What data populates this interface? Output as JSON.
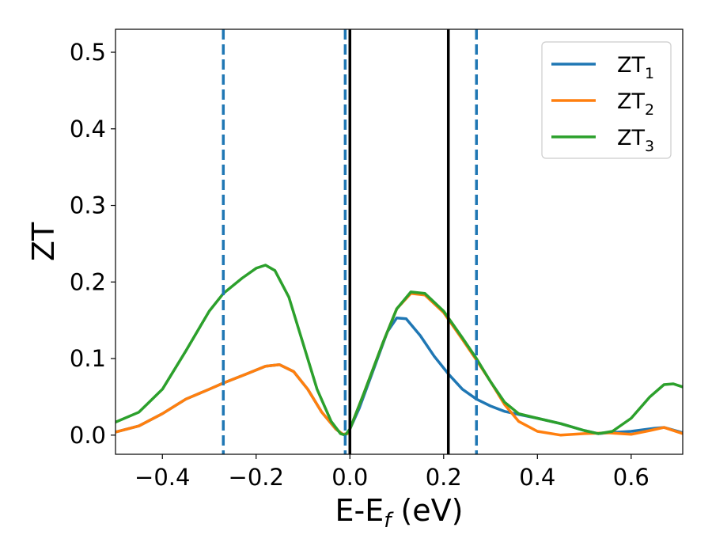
{
  "chart_data": {
    "type": "line",
    "title": "",
    "xlabel": "E-E",
    "xlabel_sub": "f",
    "xlabel_unit": " (eV)",
    "ylabel": "ZT",
    "xlim": [
      -0.5,
      0.71
    ],
    "ylim": [
      -0.025,
      0.53
    ],
    "xticks": [
      -0.4,
      -0.2,
      0.0,
      0.2,
      0.4,
      0.6
    ],
    "xtick_labels": [
      "−0.4",
      "−0.2",
      "0.0",
      "0.2",
      "0.4",
      "0.6"
    ],
    "yticks": [
      0.0,
      0.1,
      0.2,
      0.3,
      0.4,
      0.5
    ],
    "ytick_labels": [
      "0.0",
      "0.1",
      "0.2",
      "0.3",
      "0.4",
      "0.5"
    ],
    "grid": false,
    "legend_position": "top-right",
    "vlines_dashed": {
      "x": [
        -0.27,
        -0.01,
        0.27
      ],
      "color": "#1f77b4"
    },
    "vlines_solid": {
      "x": [
        0.0,
        0.21
      ],
      "color": "#000000"
    },
    "series": [
      {
        "name": "ZT",
        "sub": "1",
        "color": "#1f77b4",
        "points": [
          [
            -0.5,
            0.004
          ],
          [
            -0.45,
            0.012
          ],
          [
            -0.4,
            0.028
          ],
          [
            -0.35,
            0.047
          ],
          [
            -0.3,
            0.06
          ],
          [
            -0.27,
            0.068
          ],
          [
            -0.22,
            0.08
          ],
          [
            -0.18,
            0.09
          ],
          [
            -0.15,
            0.092
          ],
          [
            -0.12,
            0.083
          ],
          [
            -0.09,
            0.06
          ],
          [
            -0.06,
            0.03
          ],
          [
            -0.03,
            0.008
          ],
          [
            -0.015,
            0.001
          ],
          [
            -0.005,
            0.002
          ],
          [
            0.0,
            0.008
          ],
          [
            0.02,
            0.035
          ],
          [
            0.05,
            0.085
          ],
          [
            0.08,
            0.135
          ],
          [
            0.1,
            0.153
          ],
          [
            0.12,
            0.152
          ],
          [
            0.15,
            0.13
          ],
          [
            0.18,
            0.103
          ],
          [
            0.21,
            0.08
          ],
          [
            0.24,
            0.06
          ],
          [
            0.27,
            0.047
          ],
          [
            0.3,
            0.038
          ],
          [
            0.33,
            0.031
          ],
          [
            0.36,
            0.027
          ],
          [
            0.4,
            0.022
          ],
          [
            0.45,
            0.015
          ],
          [
            0.5,
            0.006
          ],
          [
            0.53,
            0.002
          ],
          [
            0.55,
            0.003
          ],
          [
            0.6,
            0.005
          ],
          [
            0.65,
            0.009
          ],
          [
            0.67,
            0.01
          ],
          [
            0.7,
            0.005
          ],
          [
            0.71,
            0.003
          ]
        ]
      },
      {
        "name": "ZT",
        "sub": "2",
        "color": "#ff7f0e",
        "points": [
          [
            -0.5,
            0.004
          ],
          [
            -0.45,
            0.012
          ],
          [
            -0.4,
            0.028
          ],
          [
            -0.35,
            0.047
          ],
          [
            -0.3,
            0.06
          ],
          [
            -0.27,
            0.068
          ],
          [
            -0.22,
            0.08
          ],
          [
            -0.18,
            0.09
          ],
          [
            -0.15,
            0.092
          ],
          [
            -0.12,
            0.083
          ],
          [
            -0.09,
            0.06
          ],
          [
            -0.06,
            0.03
          ],
          [
            -0.03,
            0.008
          ],
          [
            -0.015,
            0.001
          ],
          [
            -0.005,
            0.002
          ],
          [
            0.0,
            0.008
          ],
          [
            0.03,
            0.055
          ],
          [
            0.07,
            0.12
          ],
          [
            0.1,
            0.165
          ],
          [
            0.13,
            0.185
          ],
          [
            0.16,
            0.183
          ],
          [
            0.2,
            0.16
          ],
          [
            0.24,
            0.125
          ],
          [
            0.27,
            0.098
          ],
          [
            0.3,
            0.07
          ],
          [
            0.33,
            0.04
          ],
          [
            0.36,
            0.018
          ],
          [
            0.4,
            0.005
          ],
          [
            0.45,
            0.0
          ],
          [
            0.5,
            0.002
          ],
          [
            0.55,
            0.003
          ],
          [
            0.6,
            0.001
          ],
          [
            0.64,
            0.006
          ],
          [
            0.67,
            0.01
          ],
          [
            0.7,
            0.004
          ],
          [
            0.71,
            0.002
          ]
        ]
      },
      {
        "name": "ZT",
        "sub": "3",
        "color": "#2ca02c",
        "points": [
          [
            -0.5,
            0.017
          ],
          [
            -0.45,
            0.03
          ],
          [
            -0.4,
            0.06
          ],
          [
            -0.35,
            0.11
          ],
          [
            -0.3,
            0.162
          ],
          [
            -0.27,
            0.185
          ],
          [
            -0.23,
            0.205
          ],
          [
            -0.2,
            0.218
          ],
          [
            -0.18,
            0.222
          ],
          [
            -0.16,
            0.215
          ],
          [
            -0.13,
            0.18
          ],
          [
            -0.1,
            0.12
          ],
          [
            -0.07,
            0.06
          ],
          [
            -0.04,
            0.018
          ],
          [
            -0.02,
            0.002
          ],
          [
            -0.01,
            0.0
          ],
          [
            0.0,
            0.008
          ],
          [
            0.03,
            0.055
          ],
          [
            0.07,
            0.12
          ],
          [
            0.1,
            0.165
          ],
          [
            0.13,
            0.187
          ],
          [
            0.16,
            0.185
          ],
          [
            0.2,
            0.162
          ],
          [
            0.24,
            0.127
          ],
          [
            0.27,
            0.1
          ],
          [
            0.3,
            0.07
          ],
          [
            0.33,
            0.043
          ],
          [
            0.36,
            0.028
          ],
          [
            0.4,
            0.022
          ],
          [
            0.45,
            0.015
          ],
          [
            0.5,
            0.006
          ],
          [
            0.53,
            0.002
          ],
          [
            0.56,
            0.005
          ],
          [
            0.6,
            0.022
          ],
          [
            0.64,
            0.05
          ],
          [
            0.67,
            0.066
          ],
          [
            0.69,
            0.067
          ],
          [
            0.71,
            0.063
          ]
        ]
      }
    ]
  }
}
